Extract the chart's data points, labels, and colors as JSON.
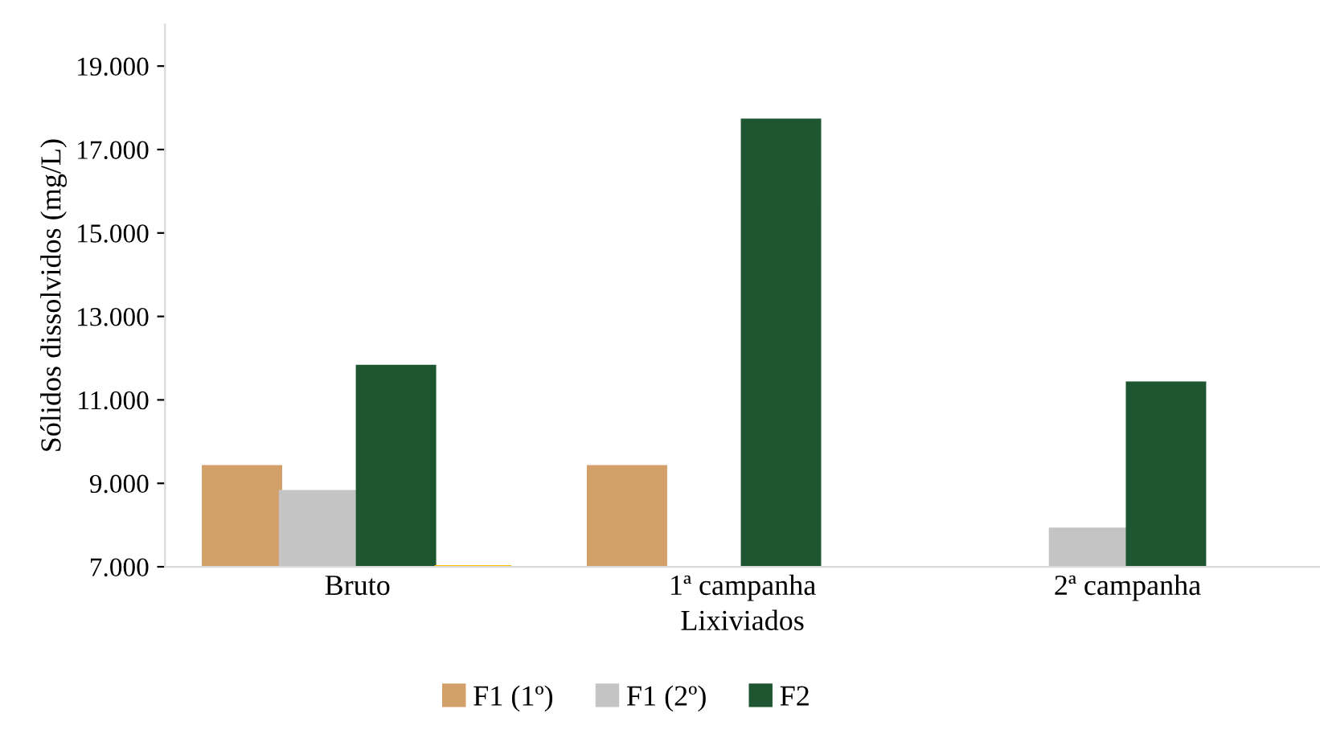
{
  "chart_data": {
    "type": "bar",
    "xlabel": "Lixiviados",
    "ylabel": "Sólidos dissolvidos (mg/L)",
    "categories": [
      "Bruto",
      "1ª campanha",
      "2ª campanha"
    ],
    "series": [
      {
        "name": "F1 (1º)",
        "color": "#d4a06a",
        "values": [
          9400,
          9400,
          null
        ]
      },
      {
        "name": "F1 (2º)",
        "color": "#c4c4c4",
        "values": [
          8800,
          null,
          7900
        ]
      },
      {
        "name": "F2",
        "color": "#1e5631",
        "values": [
          11800,
          17700,
          11400
        ]
      },
      {
        "color": "#ffc000",
        "values": [
          7000,
          null,
          null
        ]
      }
    ],
    "ylim": [
      7000,
      20000
    ],
    "yticks": [
      {
        "value": 7000,
        "label": "7.000"
      },
      {
        "value": 9000,
        "label": "9.000"
      },
      {
        "value": 11000,
        "label": "11.000"
      },
      {
        "value": 13000,
        "label": "13.000"
      },
      {
        "value": 15000,
        "label": "15.000"
      },
      {
        "value": 17000,
        "label": "17.000"
      },
      {
        "value": 19000,
        "label": "19.000"
      }
    ],
    "grid": false,
    "legend": "bottom"
  }
}
